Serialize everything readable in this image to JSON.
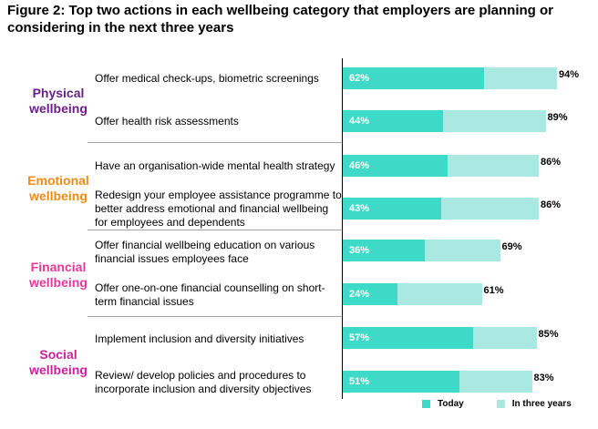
{
  "title": "Figure 2: Top two actions in each wellbeing category that employers are planning or considering in the next three years",
  "colors": {
    "today": "#3fd9c7",
    "future": "#a9e9e1",
    "physical": "#6b1f8a",
    "emotional": "#f08a16",
    "financial": "#e5399a",
    "social": "#cc1f9e"
  },
  "categories": [
    {
      "label_line1": "Physical",
      "label_line2": "wellbeing"
    },
    {
      "label_line1": "Emotional",
      "label_line2": "wellbeing"
    },
    {
      "label_line1": "Financial",
      "label_line2": "wellbeing"
    },
    {
      "label_line1": "Social",
      "label_line2": "wellbeing"
    }
  ],
  "legend": {
    "today": "Today",
    "future": "In three years"
  },
  "chart_data": {
    "type": "bar",
    "orientation": "horizontal",
    "categories": [
      "Offer medical check-ups, biometric screenings",
      "Offer health risk assessments",
      "Have an organisation-wide mental health strategy",
      "Redesign your employee assistance programme to better address emotional and financial wellbeing for employees and dependents",
      "Offer financial wellbeing education on various financial issues employees face",
      "Offer one-on-one financial counselling on short-term financial issues",
      "Implement inclusion and diversity initiatives",
      "Review/ develop policies and procedures to incorporate inclusion and diversity objectives"
    ],
    "series": [
      {
        "name": "Today",
        "values": [
          62,
          44,
          46,
          43,
          36,
          24,
          57,
          51
        ],
        "labels": [
          "62%",
          "44%",
          "46%",
          "43%",
          "36%",
          "24%",
          "57%",
          "51%"
        ]
      },
      {
        "name": "In three years",
        "values": [
          94,
          89,
          86,
          86,
          69,
          61,
          85,
          83
        ],
        "labels": [
          "94%",
          "89%",
          "86%",
          "86%",
          "69%",
          "61%",
          "85%",
          "83%"
        ]
      }
    ],
    "groups": [
      "Physical wellbeing",
      "Emotional wellbeing",
      "Financial wellbeing",
      "Social wellbeing"
    ],
    "xlim": [
      0,
      100
    ],
    "legend_position": "bottom-right",
    "grid": false
  }
}
